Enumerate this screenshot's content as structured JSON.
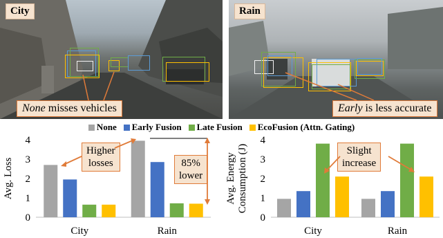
{
  "photos": {
    "city": {
      "label": "City",
      "callout_em": "None",
      "callout_rest": " misses vehicles"
    },
    "rain": {
      "label": "Rain",
      "callout_em": "Early",
      "callout_rest": " is less accurate"
    }
  },
  "legend": [
    {
      "name": "None",
      "color": "#a5a5a5"
    },
    {
      "name": "Early Fusion",
      "color": "#4472c4"
    },
    {
      "name": "Late Fusion",
      "color": "#70ad47"
    },
    {
      "name": "EcoFusion (Attn. Gating)",
      "color": "#ffc000"
    }
  ],
  "chart_data": [
    {
      "type": "bar",
      "categories": [
        "City",
        "Rain"
      ],
      "series": [
        {
          "name": "None",
          "color": "#a5a5a5",
          "values": [
            2.7,
            3.95
          ]
        },
        {
          "name": "Early Fusion",
          "color": "#4472c4",
          "values": [
            1.95,
            2.85
          ]
        },
        {
          "name": "Late Fusion",
          "color": "#70ad47",
          "values": [
            0.65,
            0.72
          ]
        },
        {
          "name": "EcoFusion (Attn. Gating)",
          "color": "#ffc000",
          "values": [
            0.65,
            0.7
          ]
        }
      ],
      "ylabel": "Avg. Loss",
      "ylim": [
        0,
        4
      ],
      "yticks": [
        "0",
        "1",
        "2",
        "3",
        "4"
      ],
      "annotations": [
        "Higher losses",
        "85% lower"
      ]
    },
    {
      "type": "bar",
      "categories": [
        "City",
        "Rain"
      ],
      "series": [
        {
          "name": "None",
          "color": "#a5a5a5",
          "values": [
            0.95,
            0.95
          ]
        },
        {
          "name": "Early Fusion",
          "color": "#4472c4",
          "values": [
            1.35,
            1.35
          ]
        },
        {
          "name": "Late Fusion",
          "color": "#70ad47",
          "values": [
            3.8,
            3.8
          ]
        },
        {
          "name": "EcoFusion (Attn. Gating)",
          "color": "#ffc000",
          "values": [
            2.1,
            2.1
          ]
        }
      ],
      "ylabel": "Avg. Energy Consumption (J)",
      "ylabel_lines": [
        "Avg. Energy",
        "Consumption (J)"
      ],
      "ylim": [
        0,
        4
      ],
      "yticks": [
        "0",
        "1",
        "2",
        "3",
        "4"
      ],
      "annotations": [
        "Slight increase"
      ]
    }
  ],
  "bubbles": {
    "higher_losses": [
      "Higher",
      "losses"
    ],
    "lower": [
      "85%",
      "lower"
    ],
    "slight": [
      "Slight",
      "increase"
    ]
  }
}
